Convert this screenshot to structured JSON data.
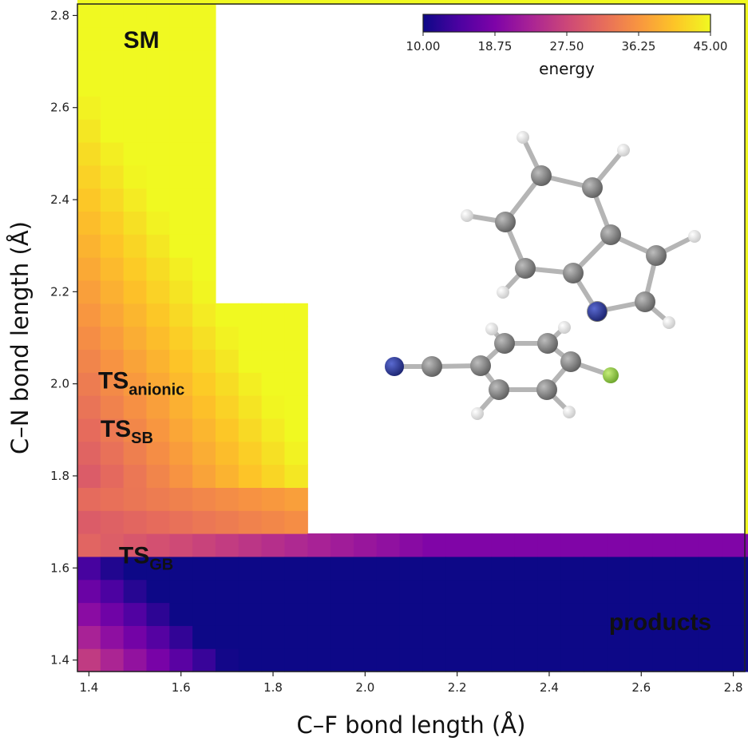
{
  "chart_data": {
    "type": "heatmap",
    "xlabel": "C–F bond length (Å)",
    "ylabel": "C–N bond length (Å)",
    "xlim": [
      1.375,
      2.825
    ],
    "ylim": [
      1.375,
      2.825
    ],
    "xticks": [
      "1.4",
      "1.6",
      "1.8",
      "2.0",
      "2.2",
      "2.4",
      "2.6",
      "2.8"
    ],
    "yticks": [
      "1.4",
      "1.6",
      "1.8",
      "2.0",
      "2.2",
      "2.4",
      "2.6",
      "2.8"
    ],
    "colorbar": {
      "label": "energy",
      "min": 10.0,
      "max": 45.0,
      "ticks": [
        "10.00",
        "18.75",
        "27.50",
        "36.25",
        "45.00"
      ],
      "colormap": "plasma",
      "location": "top-right"
    },
    "grid_start": 1.4,
    "grid_step": 0.05,
    "missing_regions": [
      {
        "x_min": 1.675,
        "x_max": 2.825,
        "y_min": 2.175,
        "y_max": 2.825
      },
      {
        "x_min": 1.875,
        "x_max": 2.825,
        "y_min": 1.675,
        "y_max": 2.175
      }
    ],
    "annotations": [
      {
        "main": "SM",
        "sub": "",
        "x": 1.475,
        "y": 2.73,
        "color": "#111111"
      },
      {
        "main": "TS",
        "sub": "anionic",
        "x": 1.42,
        "y": 1.99,
        "color": "#111111"
      },
      {
        "main": "TS",
        "sub": "SB",
        "x": 1.425,
        "y": 1.885,
        "color": "#111111"
      },
      {
        "main": "TS",
        "sub": "GB",
        "x": 1.465,
        "y": 1.61,
        "color": "#111111"
      },
      {
        "main": "products",
        "sub": "",
        "x": 2.53,
        "y": 1.465,
        "color": "#ffffff"
      }
    ],
    "colors": {
      "axis": "#222222",
      "background": "#ffffff",
      "molecule_carbon": "#777777",
      "molecule_hydrogen": "#eeeeee",
      "molecule_nitrogen": "#22338f",
      "molecule_fluorine": "#8cc63e"
    }
  }
}
